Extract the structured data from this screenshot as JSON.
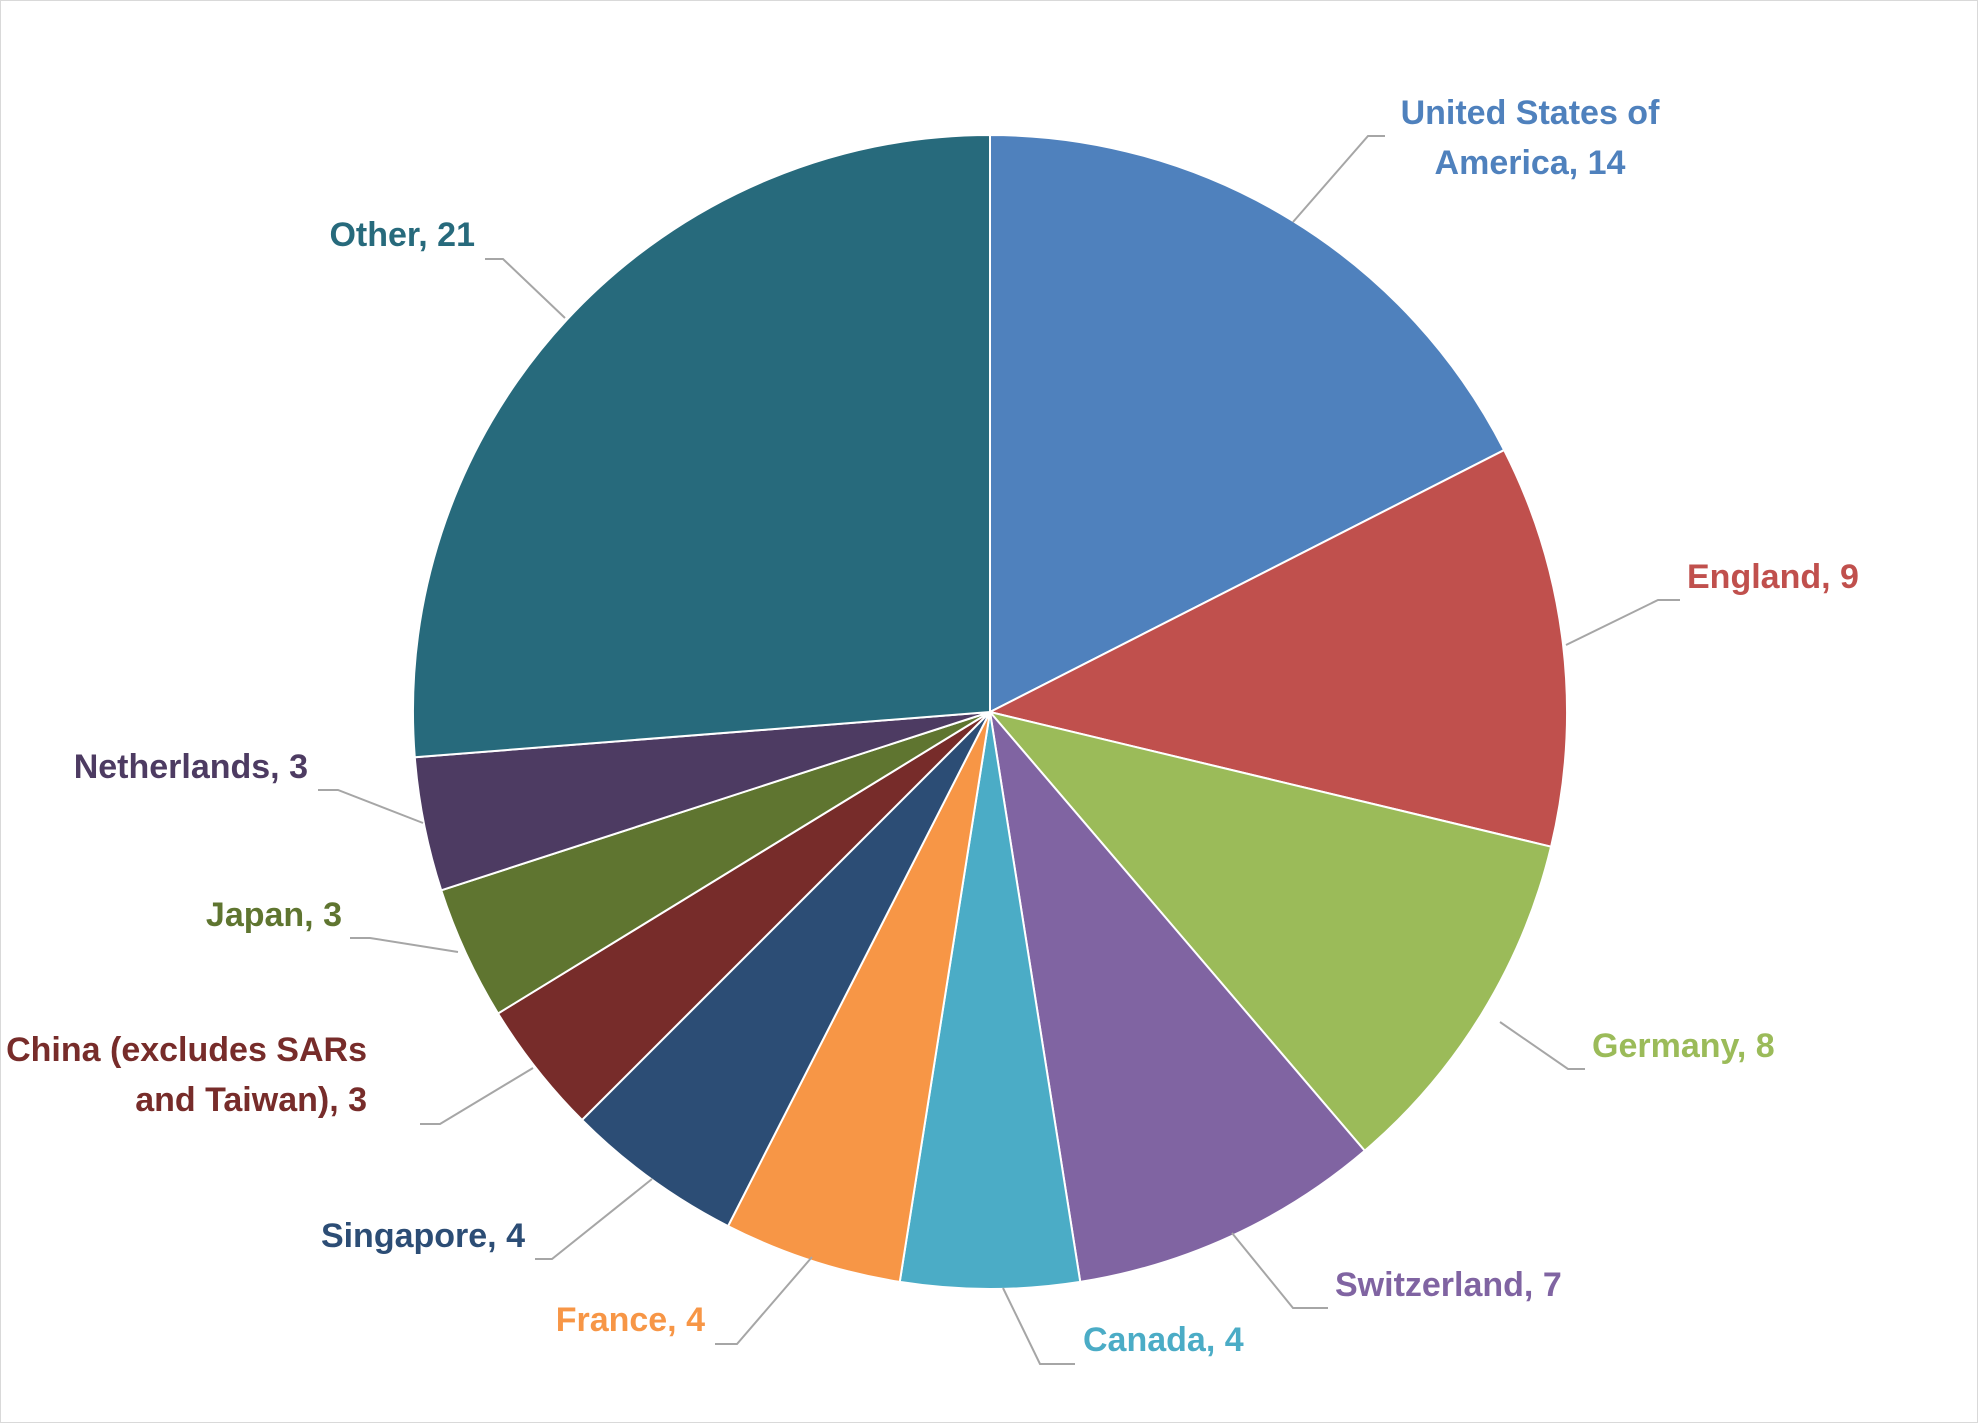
{
  "chart_data": {
    "type": "pie",
    "start_angle_deg": 0,
    "direction": "clockwise",
    "legend": "none",
    "slices": [
      {
        "label": "United States of America",
        "value": 14,
        "color": "#4F81BD",
        "label_lines": [
          "United States of",
          "America, 14"
        ]
      },
      {
        "label": "England",
        "value": 9,
        "color": "#C0504D",
        "label_lines": [
          "England, 9"
        ]
      },
      {
        "label": "Germany",
        "value": 8,
        "color": "#9BBB59",
        "label_lines": [
          "Germany, 8"
        ]
      },
      {
        "label": "Switzerland",
        "value": 7,
        "color": "#8064A2",
        "label_lines": [
          "Switzerland, 7"
        ]
      },
      {
        "label": "Canada",
        "value": 4,
        "color": "#4BACC6",
        "label_lines": [
          "Canada, 4"
        ]
      },
      {
        "label": "France",
        "value": 4,
        "color": "#F79646",
        "label_lines": [
          "France, 4"
        ]
      },
      {
        "label": "Singapore",
        "value": 4,
        "color": "#2C4D75",
        "label_lines": [
          "Singapore, 4"
        ]
      },
      {
        "label": "China (excludes SARs and Taiwan)",
        "value": 3,
        "color": "#772C2A",
        "label_lines": [
          "China (excludes SARs",
          "and Taiwan), 3"
        ]
      },
      {
        "label": "Japan",
        "value": 3,
        "color": "#5F7530",
        "label_lines": [
          "Japan, 3"
        ]
      },
      {
        "label": "Netherlands",
        "value": 3,
        "color": "#4D3B62",
        "label_lines": [
          "Netherlands, 3"
        ]
      },
      {
        "label": "Other",
        "value": 21,
        "color": "#276A7C",
        "label_lines": [
          "Other, 21"
        ]
      }
    ]
  }
}
